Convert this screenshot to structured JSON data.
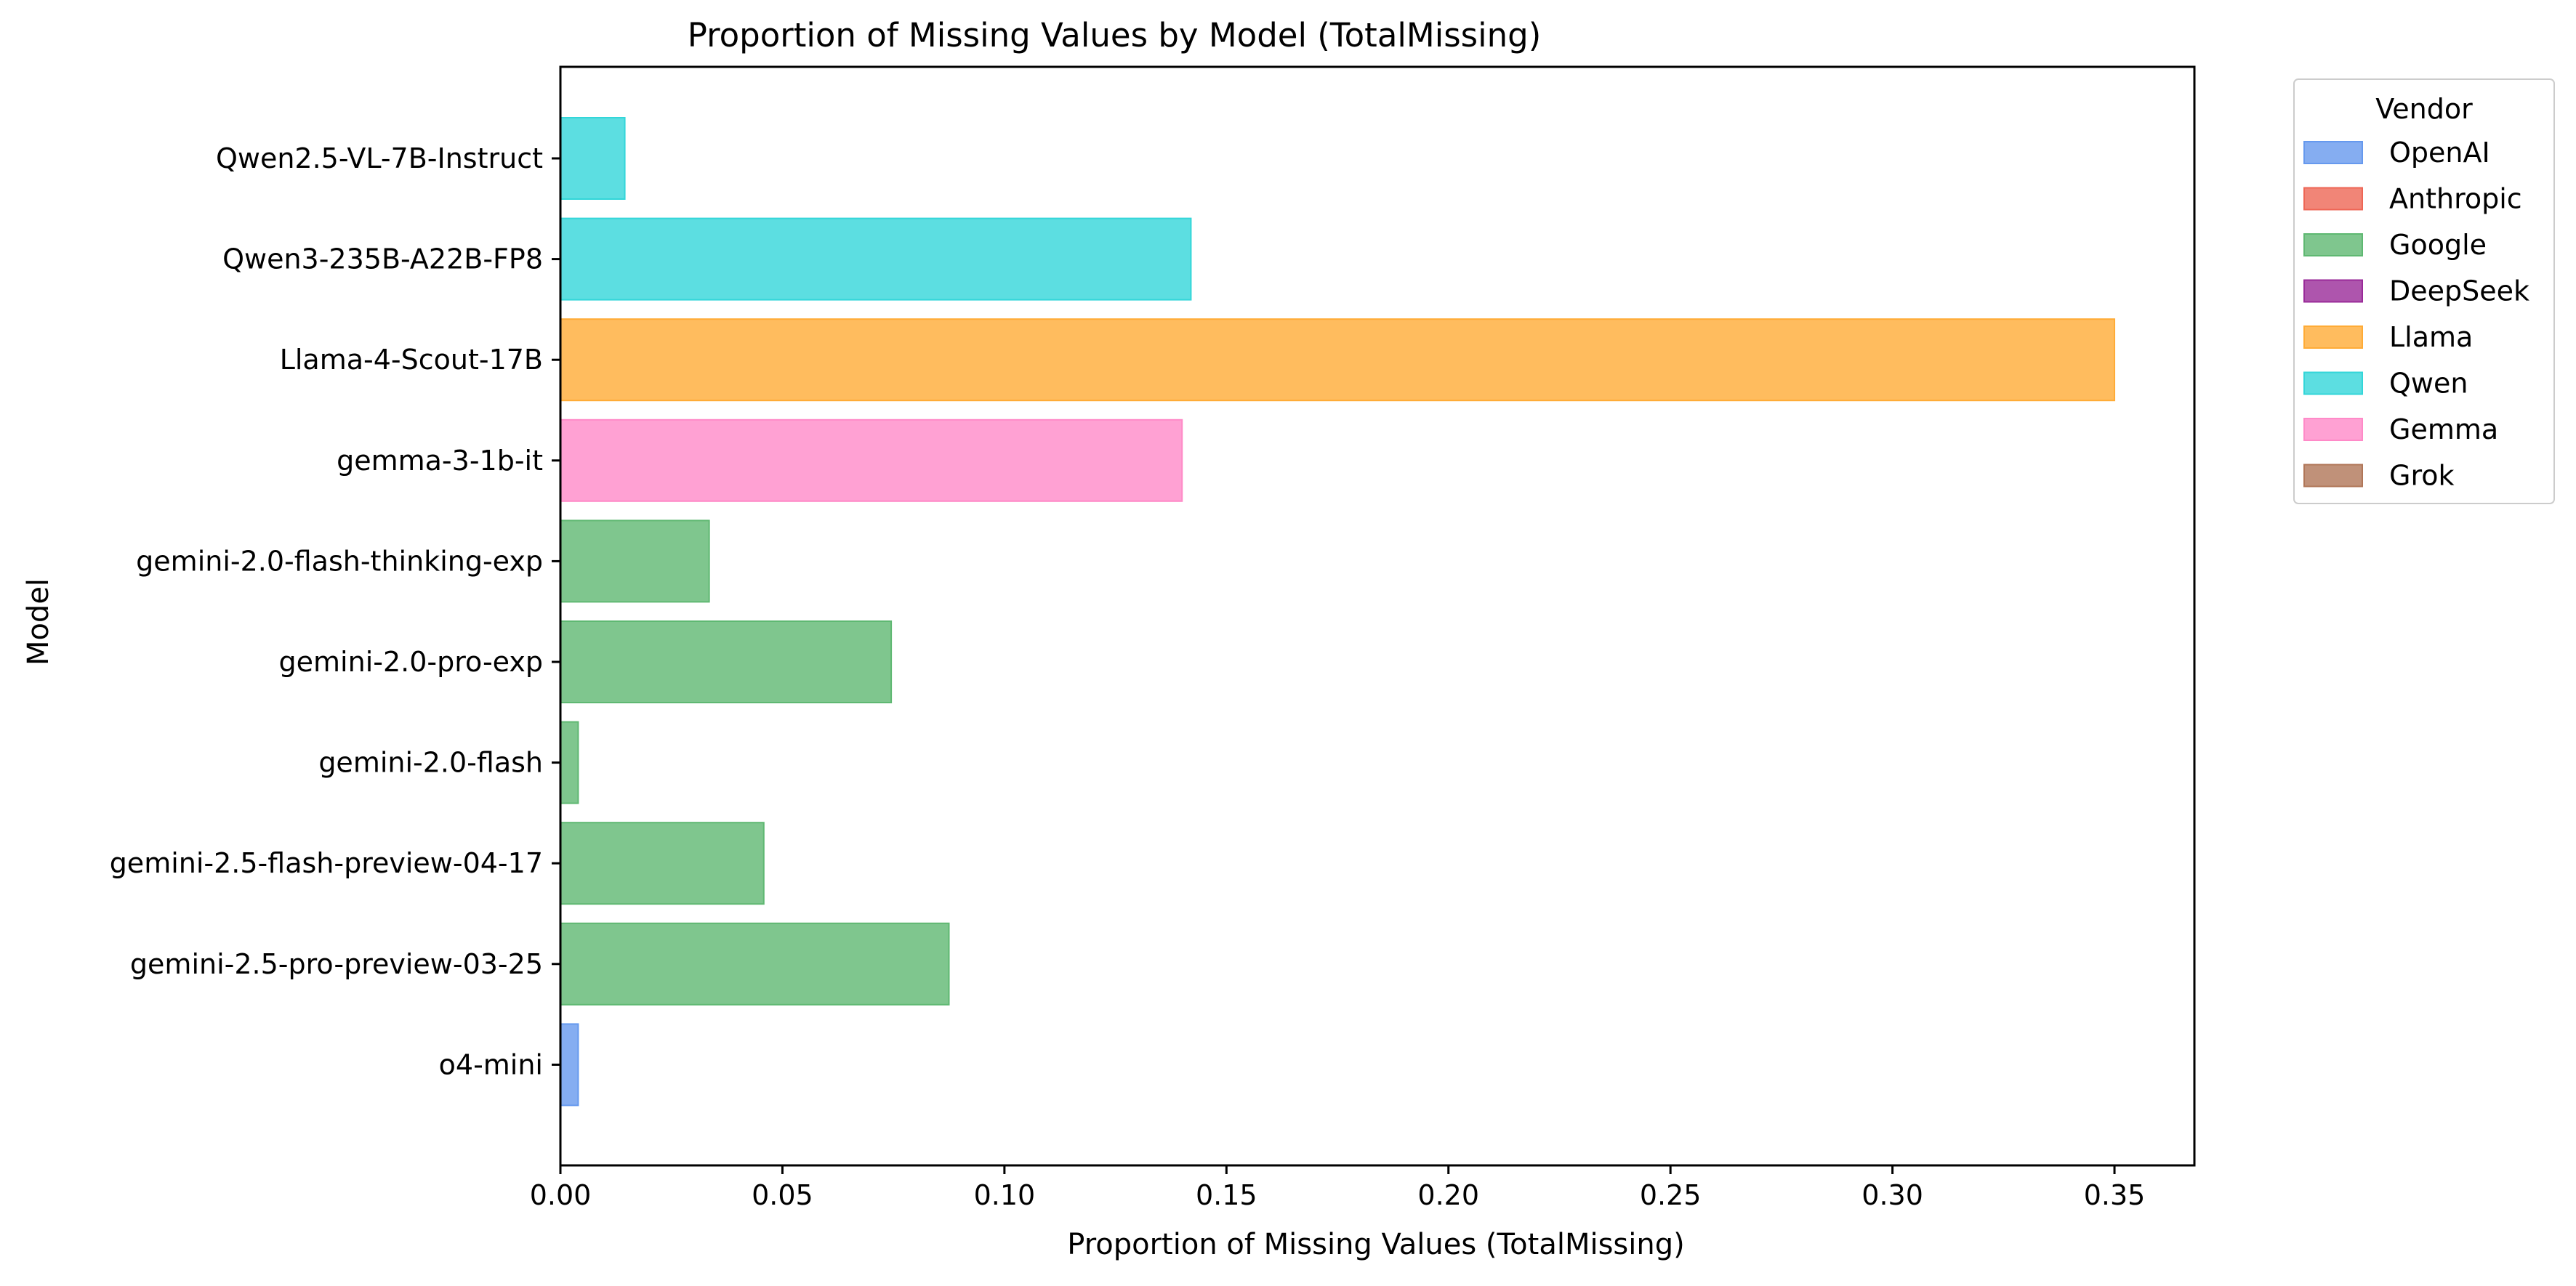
{
  "chart_data": {
    "type": "bar",
    "orientation": "horizontal",
    "title": "Proportion of Missing Values by Model (TotalMissing)",
    "xlabel": "Proportion of Missing Values (TotalMissing)",
    "ylabel": "Model",
    "xlim": [
      0,
      0.368
    ],
    "xticks": [
      0.0,
      0.05,
      0.1,
      0.15,
      0.2,
      0.25,
      0.3,
      0.35
    ],
    "xtick_labels": [
      "0.00",
      "0.05",
      "0.10",
      "0.15",
      "0.20",
      "0.25",
      "0.30",
      "0.35"
    ],
    "grid": false,
    "categories": [
      "Qwen2.5-VL-7B-Instruct",
      "Qwen3-235B-A22B-FP8",
      "Llama-4-Scout-17B",
      "gemma-3-1b-it",
      "gemini-2.0-flash-thinking-exp",
      "gemini-2.0-pro-exp",
      "gemini-2.0-flash",
      "gemini-2.5-flash-preview-04-17",
      "gemini-2.5-pro-preview-03-25",
      "o4-mini"
    ],
    "values": [
      0.0145,
      0.142,
      0.35,
      0.14,
      0.0335,
      0.0745,
      0.004,
      0.0458,
      0.0875,
      0.004
    ],
    "bar_vendor": [
      "Qwen",
      "Qwen",
      "Llama",
      "Gemma",
      "Google",
      "Google",
      "Google",
      "Google",
      "Google",
      "OpenAI"
    ],
    "legend": {
      "title": "Vendor",
      "placement": "outside-top-right",
      "entries": [
        {
          "name": "OpenAI",
          "color": "#6699ee"
        },
        {
          "name": "Anthropic",
          "color": "#ee6655"
        },
        {
          "name": "Google",
          "color": "#5fb872"
        },
        {
          "name": "DeepSeek",
          "color": "#9a2a99"
        },
        {
          "name": "Llama",
          "color": "#ffab36"
        },
        {
          "name": "Qwen",
          "color": "#33d6d9"
        },
        {
          "name": "Gemma",
          "color": "#ff8ac8"
        },
        {
          "name": "Grok",
          "color": "#b07658"
        }
      ]
    }
  }
}
